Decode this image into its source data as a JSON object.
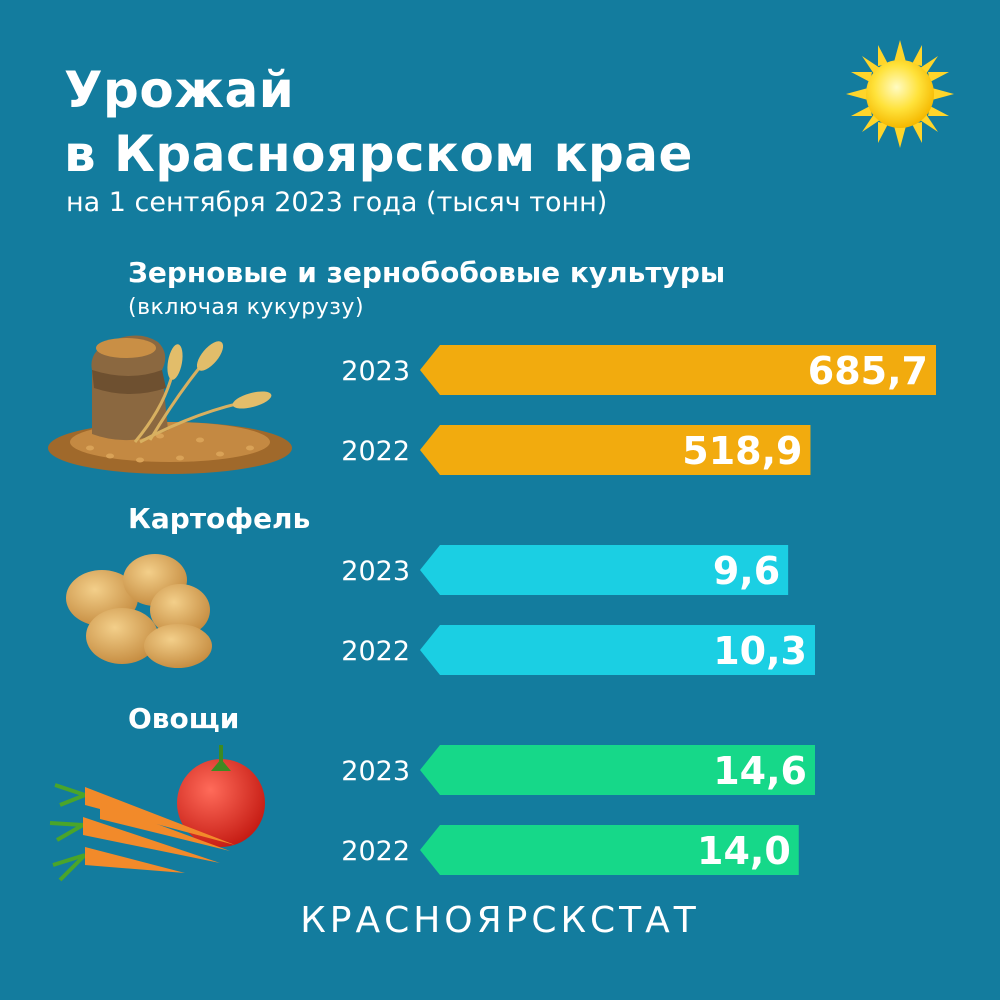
{
  "header": {
    "title_line1": "Урожай",
    "title_line2": "в Красноярском крае",
    "subtitle": "на 1 сентября 2023 года (тысяч тонн)"
  },
  "icons": {
    "sun": "sun-icon",
    "grain": "grain-sack-illustration",
    "potato": "potatoes-illustration",
    "vegetables": "carrots-tomato-illustration"
  },
  "chart_data": {
    "type": "bar",
    "orientation": "horizontal",
    "value_format": "decimal comma",
    "groups": [
      {
        "name": "Зерновые и зернобобовые культуры",
        "note": "(включая кукурузу)",
        "color": "#f2ab0e",
        "items": [
          {
            "year": "2023",
            "value": 685.7,
            "label": "685,7"
          },
          {
            "year": "2022",
            "value": 518.9,
            "label": "518,9"
          }
        ]
      },
      {
        "name": "Картофель",
        "note": "",
        "color": "#1bcfe3",
        "items": [
          {
            "year": "2023",
            "value": 9.6,
            "label": "9,6"
          },
          {
            "year": "2022",
            "value": 10.3,
            "label": "10,3"
          }
        ]
      },
      {
        "name": "Овощи",
        "note": "",
        "color": "#16d889",
        "items": [
          {
            "year": "2023",
            "value": 14.6,
            "label": "14,6"
          },
          {
            "year": "2022",
            "value": 14.0,
            "label": "14,0"
          }
        ]
      }
    ]
  },
  "footer": {
    "brand": "КРАСНОЯРСКСТАТ"
  }
}
